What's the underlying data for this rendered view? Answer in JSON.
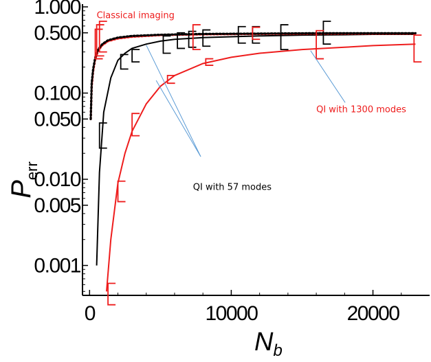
{
  "chart_data": {
    "type": "line",
    "xlabel": "N",
    "xlabel_sub": "b",
    "ylabel": "P",
    "ylabel_sub": "err",
    "y_scale": "log",
    "xlim": [
      -500,
      24000
    ],
    "ylim": [
      0.00045,
      1.0
    ],
    "x_ticks": [
      0,
      10000,
      20000
    ],
    "x_tick_labels": [
      "0",
      "10000",
      "20000"
    ],
    "y_ticks": [
      1.0,
      0.5,
      0.1,
      0.05,
      0.01,
      0.005,
      0.001
    ],
    "y_tick_labels": [
      "1.000",
      "0.500",
      "0.100",
      "0.050",
      "0.010",
      "0.005",
      "0.001"
    ],
    "grid": false,
    "legend": "none",
    "series": [
      {
        "name": "QI with 57 modes",
        "color": "#000000",
        "style": "solid",
        "x": [
          500,
          700,
          1000,
          1500,
          2000,
          2500,
          3000,
          4000,
          5000,
          6000,
          8000,
          10000,
          12000,
          15000,
          18000,
          20000,
          23000
        ],
        "y": [
          0.001,
          0.012,
          0.06,
          0.15,
          0.24,
          0.29,
          0.33,
          0.37,
          0.4,
          0.42,
          0.44,
          0.45,
          0.46,
          0.47,
          0.475,
          0.48,
          0.48
        ]
      },
      {
        "name": "QI with 1300 modes",
        "color": "#ee1c1c",
        "style": "solid",
        "x": [
          1200,
          1500,
          2000,
          2500,
          3000,
          4000,
          5000,
          6000,
          8000,
          10000,
          12000,
          15000,
          18000,
          20000,
          23000
        ],
        "y": [
          0.0005,
          0.002,
          0.009,
          0.02,
          0.036,
          0.075,
          0.12,
          0.16,
          0.22,
          0.26,
          0.29,
          0.32,
          0.34,
          0.355,
          0.37
        ]
      },
      {
        "name": "Classical imaging",
        "color": "#ee1c1c",
        "style": "dotted",
        "x": [
          80,
          150,
          250,
          400,
          600,
          900,
          1300,
          2000,
          3000,
          5000,
          8000,
          12000,
          16000,
          20000,
          23000
        ],
        "y": [
          0.05,
          0.12,
          0.18,
          0.25,
          0.31,
          0.36,
          0.4,
          0.43,
          0.45,
          0.47,
          0.48,
          0.485,
          0.49,
          0.49,
          0.49
        ]
      },
      {
        "name": "",
        "color": "#000000",
        "style": "dotted",
        "x": [
          80,
          150,
          250,
          400,
          600,
          900,
          1300,
          2000,
          3000,
          5000,
          8000,
          12000,
          16000,
          20000,
          23000
        ],
        "y": [
          0.05,
          0.13,
          0.19,
          0.26,
          0.32,
          0.37,
          0.41,
          0.44,
          0.46,
          0.475,
          0.485,
          0.49,
          0.495,
          0.495,
          0.495
        ]
      }
    ],
    "error_bars": [
      {
        "color": "#000000",
        "points": [
          {
            "x": 700,
            "lo": 0.023,
            "hi": 0.045
          },
          {
            "x": 2200,
            "lo": 0.19,
            "hi": 0.28
          },
          {
            "x": 3000,
            "lo": 0.23,
            "hi": 0.32
          },
          {
            "x": 5200,
            "lo": 0.29,
            "hi": 0.46
          },
          {
            "x": 6200,
            "lo": 0.33,
            "hi": 0.5
          },
          {
            "x": 7000,
            "lo": 0.34,
            "hi": 0.52
          },
          {
            "x": 8000,
            "lo": 0.35,
            "hi": 0.54
          },
          {
            "x": 10500,
            "lo": 0.38,
            "hi": 0.59
          },
          {
            "x": 11500,
            "lo": 0.38,
            "hi": 0.59
          },
          {
            "x": 13500,
            "lo": 0.32,
            "hi": 0.62
          },
          {
            "x": 16500,
            "lo": 0.37,
            "hi": 0.68
          }
        ]
      },
      {
        "color": "#ee1c1c",
        "points": [
          {
            "x": 400,
            "lo": 0.25,
            "hi": 0.55
          },
          {
            "x": 500,
            "lo": 0.27,
            "hi": 0.62
          },
          {
            "x": 700,
            "lo": 0.3,
            "hi": 0.68
          },
          {
            "x": 1300,
            "lo": 0.00035,
            "hi": 0.00062
          },
          {
            "x": 2000,
            "lo": 0.0055,
            "hi": 0.0095
          },
          {
            "x": 3000,
            "lo": 0.032,
            "hi": 0.058
          },
          {
            "x": 5500,
            "lo": 0.13,
            "hi": 0.16
          },
          {
            "x": 7300,
            "lo": 0.32,
            "hi": 0.62
          },
          {
            "x": 8200,
            "lo": 0.21,
            "hi": 0.25
          },
          {
            "x": 11500,
            "lo": 0.42,
            "hi": 0.58
          },
          {
            "x": 16000,
            "lo": 0.25,
            "hi": 0.53
          },
          {
            "x": 22900,
            "lo": 0.23,
            "hi": 0.47
          }
        ]
      }
    ],
    "annotations": [
      {
        "text": "Classical imaging",
        "color": "#ee1c1c",
        "at": [
          500,
          0.74
        ]
      },
      {
        "text": "QI with 1300 modes",
        "color": "#ee1c1c",
        "at": [
          16000,
          0.06
        ],
        "pointer_to": [
          15600,
          0.31
        ]
      },
      {
        "text": "QI with 57 modes",
        "color": "#000000",
        "at": [
          7300,
          0.0075
        ],
        "pointers_to": [
          [
            4000,
            0.36
          ],
          [
            4700,
            0.14
          ]
        ]
      }
    ]
  }
}
